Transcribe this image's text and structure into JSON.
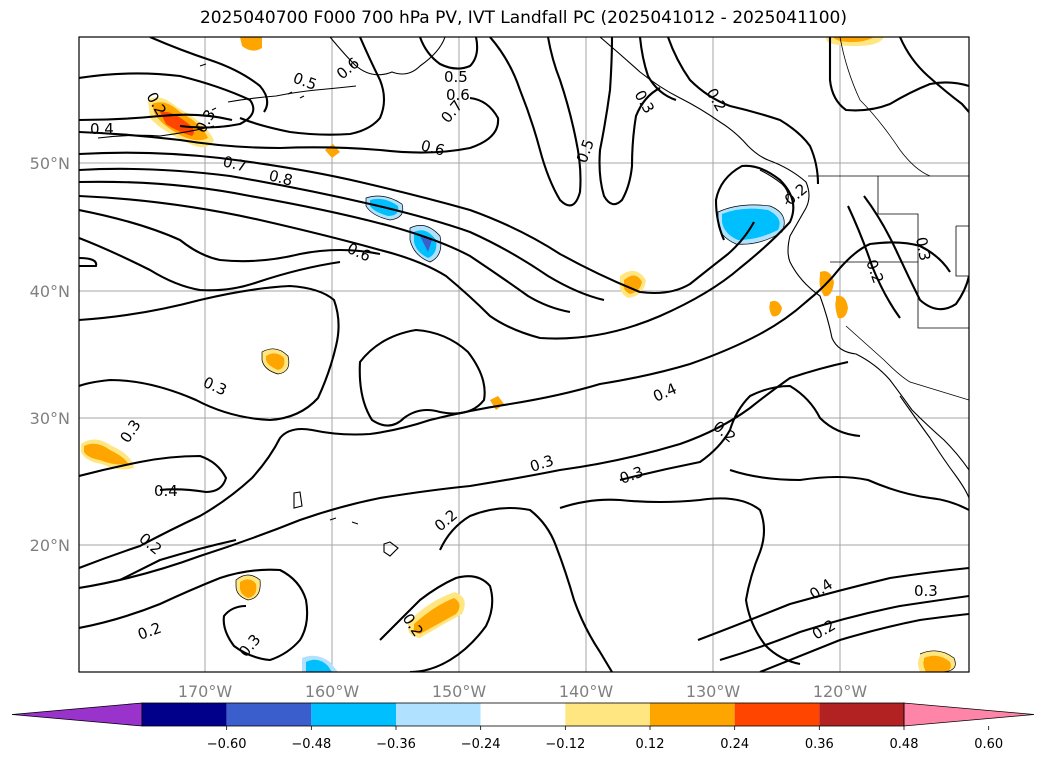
{
  "title": "2025040700 F000 700 hPa PV, IVT Landfall PC (2025041012 - 2025041100)",
  "axes": {
    "lon_labels": [
      "170°W",
      "160°W",
      "150°W",
      "140°W",
      "130°W",
      "120°W"
    ],
    "lat_labels": [
      "50°N",
      "40°N",
      "30°N",
      "20°N"
    ]
  },
  "contour_labels": [
    "0.2",
    "0.4",
    "0.5",
    "0.6",
    "0.5",
    "0.6",
    "0.7",
    "0.6",
    "0.7",
    "0.8",
    "0.3",
    "0.2",
    "0.5",
    "0.6",
    "0.3",
    "0.2",
    "0.3",
    "0.3",
    "0.4",
    "0.2",
    "0.3",
    "0.4",
    "0.3",
    "0.2",
    "0.2",
    "0.2",
    "0.3",
    "0.2",
    "0.4",
    "0.3",
    "0.2",
    "0.3",
    "0.2"
  ],
  "colorbar": {
    "ticks": [
      "−0.60",
      "−0.48",
      "−0.36",
      "−0.24",
      "−0.12",
      "0.12",
      "0.24",
      "0.36",
      "0.48",
      "0.60"
    ],
    "colors": [
      "#9a33cc",
      "#00008b",
      "#3a5fcd",
      "#00bfff",
      "#b0e2ff",
      "#ffffff",
      "#ffe680",
      "#ffa500",
      "#ff4500",
      "#b22222",
      "#ff85a8"
    ]
  }
}
